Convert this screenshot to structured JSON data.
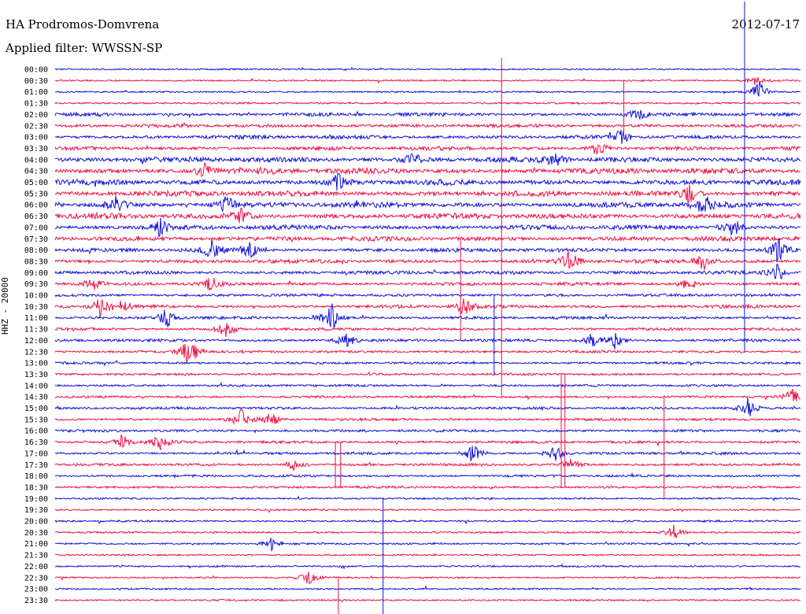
{
  "header": {
    "station": "HA Prodromos-Domvrena",
    "filter": "Applied filter: WWSSN-SP",
    "date": "2012-07-17"
  },
  "chart_data": {
    "type": "line",
    "title": "HA Prodromos-Domvrena",
    "subtitle": "Applied filter: WWSSN-SP",
    "date": "2012-07-17",
    "ylabel": "HHZ - 20000",
    "xlabel": "",
    "row_labels": [
      "00:00",
      "00:30",
      "01:00",
      "01:30",
      "02:00",
      "02:30",
      "03:00",
      "03:30",
      "04:00",
      "04:30",
      "05:00",
      "05:30",
      "06:00",
      "06:30",
      "07:00",
      "07:30",
      "08:00",
      "08:30",
      "09:00",
      "09:30",
      "10:00",
      "10:30",
      "11:00",
      "11:30",
      "12:00",
      "12:30",
      "13:00",
      "13:30",
      "14:00",
      "14:30",
      "15:00",
      "15:30",
      "16:00",
      "16:30",
      "17:00",
      "17:30",
      "18:00",
      "18:30",
      "19:00",
      "19:30",
      "20:00",
      "20:30",
      "21:00",
      "21:30",
      "22:00",
      "22:30",
      "23:00",
      "23:30"
    ],
    "trace_colors": [
      "#1111dd",
      "#ee1144"
    ],
    "activity": [
      0.1,
      0.15,
      0.15,
      0.2,
      0.55,
      0.55,
      0.6,
      0.6,
      0.95,
      1.0,
      1.0,
      1.0,
      1.0,
      0.95,
      0.85,
      0.8,
      0.65,
      0.6,
      0.55,
      0.5,
      0.4,
      0.5,
      0.4,
      0.4,
      0.4,
      0.35,
      0.3,
      0.3,
      0.3,
      0.3,
      0.35,
      0.35,
      0.35,
      0.4,
      0.35,
      0.35,
      0.3,
      0.3,
      0.2,
      0.2,
      0.2,
      0.2,
      0.2,
      0.15,
      0.15,
      0.15,
      0.15,
      0.15
    ],
    "events": [
      {
        "row": 1,
        "x": 0.94,
        "amp": 6
      },
      {
        "row": 2,
        "x": 0.945,
        "amp": 14
      },
      {
        "row": 4,
        "x": 0.78,
        "amp": 10
      },
      {
        "row": 6,
        "x": 0.76,
        "amp": 12
      },
      {
        "row": 7,
        "x": 0.73,
        "amp": 10
      },
      {
        "row": 8,
        "x": 0.67,
        "amp": 10
      },
      {
        "row": 8,
        "x": 0.48,
        "amp": 9
      },
      {
        "row": 9,
        "x": 0.2,
        "amp": 10
      },
      {
        "row": 10,
        "x": 0.38,
        "amp": 12
      },
      {
        "row": 11,
        "x": 0.85,
        "amp": 14
      },
      {
        "row": 12,
        "x": 0.08,
        "amp": 14
      },
      {
        "row": 12,
        "x": 0.23,
        "amp": 12
      },
      {
        "row": 12,
        "x": 0.87,
        "amp": 14
      },
      {
        "row": 13,
        "x": 0.25,
        "amp": 10
      },
      {
        "row": 14,
        "x": 0.14,
        "amp": 12
      },
      {
        "row": 14,
        "x": 0.91,
        "amp": 14
      },
      {
        "row": 16,
        "x": 0.21,
        "amp": 14
      },
      {
        "row": 16,
        "x": 0.26,
        "amp": 14
      },
      {
        "row": 16,
        "x": 0.97,
        "amp": 16
      },
      {
        "row": 17,
        "x": 0.69,
        "amp": 18
      },
      {
        "row": 17,
        "x": 0.87,
        "amp": 12
      },
      {
        "row": 18,
        "x": 0.97,
        "amp": 12
      },
      {
        "row": 19,
        "x": 0.05,
        "amp": 10
      },
      {
        "row": 19,
        "x": 0.21,
        "amp": 10
      },
      {
        "row": 19,
        "x": 0.85,
        "amp": 12
      },
      {
        "row": 21,
        "x": 0.06,
        "amp": 12
      },
      {
        "row": 21,
        "x": 0.55,
        "amp": 14
      },
      {
        "row": 21,
        "x": 0.09,
        "amp": 10
      },
      {
        "row": 22,
        "x": 0.15,
        "amp": 14
      },
      {
        "row": 22,
        "x": 0.37,
        "amp": 20
      },
      {
        "row": 23,
        "x": 0.23,
        "amp": 14
      },
      {
        "row": 24,
        "x": 0.39,
        "amp": 12
      },
      {
        "row": 24,
        "x": 0.72,
        "amp": 9
      },
      {
        "row": 24,
        "x": 0.75,
        "amp": 12
      },
      {
        "row": 25,
        "x": 0.18,
        "amp": 24
      },
      {
        "row": 29,
        "x": 0.99,
        "amp": 12
      },
      {
        "row": 30,
        "x": 0.93,
        "amp": 14
      },
      {
        "row": 31,
        "x": 0.25,
        "amp": 14
      },
      {
        "row": 31,
        "x": 0.29,
        "amp": 10
      },
      {
        "row": 33,
        "x": 0.09,
        "amp": 10
      },
      {
        "row": 33,
        "x": 0.14,
        "amp": 12
      },
      {
        "row": 34,
        "x": 0.56,
        "amp": 14
      },
      {
        "row": 34,
        "x": 0.67,
        "amp": 12
      },
      {
        "row": 35,
        "x": 0.69,
        "amp": 10
      },
      {
        "row": 35,
        "x": 0.32,
        "amp": 8
      },
      {
        "row": 41,
        "x": 0.83,
        "amp": 10
      },
      {
        "row": 42,
        "x": 0.29,
        "amp": 8
      },
      {
        "row": 45,
        "x": 0.34,
        "amp": 10
      }
    ],
    "spikes": [
      {
        "x": 0.599,
        "from_row": -1,
        "to_row": 29
      },
      {
        "x": 0.763,
        "from_row": 1,
        "to_row": 6
      },
      {
        "x": 0.925,
        "from_row": -6,
        "to_row": 25
      },
      {
        "x": 0.544,
        "from_row": 15,
        "to_row": 24
      },
      {
        "x": 0.589,
        "from_row": 20,
        "to_row": 27
      },
      {
        "x": 0.679,
        "from_row": 27,
        "to_row": 37
      },
      {
        "x": 0.684,
        "from_row": 27,
        "to_row": 37
      },
      {
        "x": 0.817,
        "from_row": 29,
        "to_row": 38
      },
      {
        "x": 0.376,
        "from_row": 33,
        "to_row": 37
      },
      {
        "x": 0.383,
        "from_row": 33,
        "to_row": 37
      },
      {
        "x": 0.44,
        "from_row": 38,
        "to_row": 49
      },
      {
        "x": 0.38,
        "from_row": 45,
        "to_row": 49
      }
    ]
  }
}
